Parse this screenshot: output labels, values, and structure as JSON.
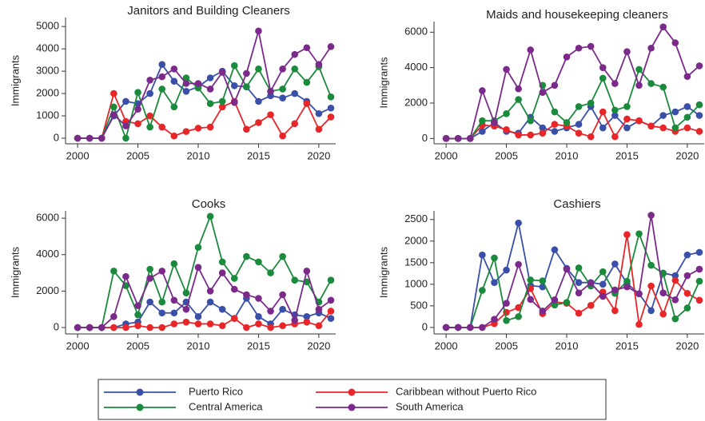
{
  "chart_data": [
    {
      "type": "line",
      "title": "Janitors and Building Cleaners",
      "y_label": "Immigrants",
      "x": [
        2000,
        2001,
        2002,
        2003,
        2004,
        2005,
        2006,
        2007,
        2008,
        2009,
        2010,
        2011,
        2012,
        2013,
        2014,
        2015,
        2016,
        2017,
        2018,
        2019,
        2020,
        2021
      ],
      "xlim": [
        1999,
        2021.4
      ],
      "xticks": [
        2000,
        2005,
        2010,
        2015,
        2020
      ],
      "ylim": [
        -250,
        5400
      ],
      "yticks": [
        0,
        1000,
        2000,
        3000,
        4000,
        5000
      ],
      "series": [
        {
          "name": "Puerto Rico",
          "color": "#3a4fa8",
          "values": [
            0,
            0,
            0,
            1000,
            1650,
            1550,
            2000,
            3300,
            2550,
            2100,
            2300,
            2700,
            3000,
            2350,
            2300,
            1650,
            1900,
            1800,
            2000,
            1650,
            1100,
            1350
          ]
        },
        {
          "name": "Caribbean without Puerto Rico",
          "color": "#e8262a",
          "values": [
            0,
            0,
            0,
            2000,
            750,
            650,
            1000,
            500,
            100,
            300,
            450,
            500,
            1400,
            1650,
            400,
            700,
            1050,
            100,
            650,
            1550,
            400,
            950
          ]
        },
        {
          "name": "Central America",
          "color": "#1a8a3c",
          "values": [
            0,
            0,
            0,
            1400,
            0,
            2050,
            500,
            2200,
            1400,
            2700,
            2250,
            1550,
            1650,
            3250,
            2300,
            3100,
            2100,
            2200,
            3100,
            2500,
            3200,
            1850
          ]
        },
        {
          "name": "South America",
          "color": "#7b2a8c",
          "values": [
            0,
            0,
            0,
            1050,
            550,
            1300,
            2600,
            2750,
            3100,
            2450,
            2450,
            2200,
            2950,
            1600,
            2900,
            4800,
            2100,
            3100,
            3750,
            4050,
            3300,
            4100
          ]
        }
      ]
    },
    {
      "type": "line",
      "title": "Maids and housekeeping cleaners",
      "y_label": "Immigrants",
      "x": [
        2000,
        2001,
        2002,
        2003,
        2004,
        2005,
        2006,
        2007,
        2008,
        2009,
        2010,
        2011,
        2012,
        2013,
        2014,
        2015,
        2016,
        2017,
        2018,
        2019,
        2020,
        2021
      ],
      "xlim": [
        1999,
        2021.4
      ],
      "xticks": [
        2000,
        2005,
        2010,
        2015,
        2020
      ],
      "ylim": [
        -300,
        6600
      ],
      "yticks": [
        0,
        2000,
        4000,
        6000
      ],
      "series": [
        {
          "name": "Puerto Rico",
          "color": "#3a4fa8",
          "values": [
            0,
            0,
            0,
            400,
            900,
            400,
            300,
            1200,
            600,
            400,
            600,
            800,
            1800,
            600,
            1300,
            600,
            1000,
            700,
            1300,
            1500,
            1800,
            1300
          ]
        },
        {
          "name": "Caribbean without Puerto Rico",
          "color": "#e8262a",
          "values": [
            0,
            0,
            0,
            750,
            700,
            500,
            200,
            200,
            300,
            800,
            700,
            300,
            100,
            1500,
            100,
            1100,
            1000,
            700,
            600,
            400,
            600,
            400
          ]
        },
        {
          "name": "Central America",
          "color": "#1a8a3c",
          "values": [
            0,
            0,
            0,
            1000,
            1000,
            1400,
            2200,
            1000,
            3000,
            1500,
            900,
            1800,
            2000,
            3400,
            1600,
            1800,
            3900,
            3100,
            2900,
            600,
            1200,
            1900
          ]
        },
        {
          "name": "South America",
          "color": "#7b2a8c",
          "values": [
            0,
            0,
            0,
            2700,
            900,
            3900,
            2800,
            5000,
            2600,
            3000,
            4600,
            5100,
            5200,
            4000,
            3100,
            4900,
            3000,
            5100,
            6300,
            5400,
            3500,
            4100
          ]
        }
      ]
    },
    {
      "type": "line",
      "title": "Cooks",
      "y_label": "Immigrants",
      "x": [
        2000,
        2001,
        2002,
        2003,
        2004,
        2005,
        2006,
        2007,
        2008,
        2009,
        2010,
        2011,
        2012,
        2013,
        2014,
        2015,
        2016,
        2017,
        2018,
        2019,
        2020,
        2021
      ],
      "xlim": [
        1999,
        2021.4
      ],
      "xticks": [
        2000,
        2005,
        2010,
        2015,
        2020
      ],
      "ylim": [
        -350,
        6400
      ],
      "yticks": [
        0,
        2000,
        4000,
        6000
      ],
      "series": [
        {
          "name": "Puerto Rico",
          "color": "#3a4fa8",
          "values": [
            0,
            0,
            0,
            0,
            200,
            300,
            1400,
            800,
            800,
            1400,
            600,
            1400,
            1000,
            500,
            1600,
            600,
            200,
            1000,
            700,
            600,
            800,
            500
          ]
        },
        {
          "name": "Caribbean without Puerto Rico",
          "color": "#e8262a",
          "values": [
            0,
            0,
            0,
            0,
            0,
            100,
            0,
            0,
            200,
            300,
            200,
            200,
            100,
            500,
            0,
            200,
            0,
            100,
            200,
            300,
            100,
            900
          ]
        },
        {
          "name": "Central America",
          "color": "#1a8a3c",
          "values": [
            0,
            0,
            0,
            3100,
            2300,
            700,
            3200,
            1400,
            3500,
            1900,
            4400,
            6100,
            3600,
            2700,
            3900,
            3600,
            3000,
            3900,
            2600,
            2500,
            1400,
            2600
          ]
        },
        {
          "name": "South America",
          "color": "#7b2a8c",
          "values": [
            0,
            0,
            0,
            600,
            2800,
            1200,
            2700,
            3100,
            1500,
            1000,
            3300,
            2000,
            3000,
            2100,
            1800,
            1600,
            900,
            1800,
            400,
            3100,
            1000,
            1500
          ]
        }
      ]
    },
    {
      "type": "line",
      "title": "Cashiers",
      "y_label": "Immigrants",
      "x": [
        2000,
        2001,
        2002,
        2003,
        2004,
        2005,
        2006,
        2007,
        2008,
        2009,
        2010,
        2011,
        2012,
        2013,
        2014,
        2015,
        2016,
        2017,
        2018,
        2019,
        2020,
        2021
      ],
      "xlim": [
        1999,
        2021.4
      ],
      "xticks": [
        2000,
        2005,
        2010,
        2015,
        2020
      ],
      "ylim": [
        -150,
        2700
      ],
      "yticks": [
        0,
        500,
        1000,
        1500,
        2000,
        2500
      ],
      "series": [
        {
          "name": "Puerto Rico",
          "color": "#3a4fa8",
          "values": [
            0,
            0,
            0,
            1680,
            1040,
            1330,
            2420,
            970,
            940,
            1800,
            1370,
            1040,
            1040,
            1000,
            1470,
            1020,
            780,
            390,
            1260,
            1200,
            1680,
            1740
          ]
        },
        {
          "name": "Caribbean without Puerto Rico",
          "color": "#e8262a",
          "values": [
            0,
            0,
            0,
            0,
            90,
            350,
            460,
            900,
            320,
            590,
            560,
            330,
            510,
            820,
            390,
            2150,
            70,
            960,
            310,
            1090,
            790,
            630
          ]
        },
        {
          "name": "Central America",
          "color": "#1a8a3c",
          "values": [
            0,
            0,
            0,
            860,
            1610,
            160,
            250,
            1100,
            1080,
            520,
            580,
            1380,
            960,
            1290,
            790,
            1070,
            2170,
            1440,
            1250,
            200,
            450,
            1070
          ]
        },
        {
          "name": "South America",
          "color": "#7b2a8c",
          "values": [
            0,
            0,
            0,
            0,
            190,
            560,
            1460,
            650,
            380,
            640,
            1350,
            800,
            1030,
            720,
            870,
            940,
            780,
            2600,
            800,
            640,
            1200,
            1350
          ]
        }
      ]
    }
  ]
}
